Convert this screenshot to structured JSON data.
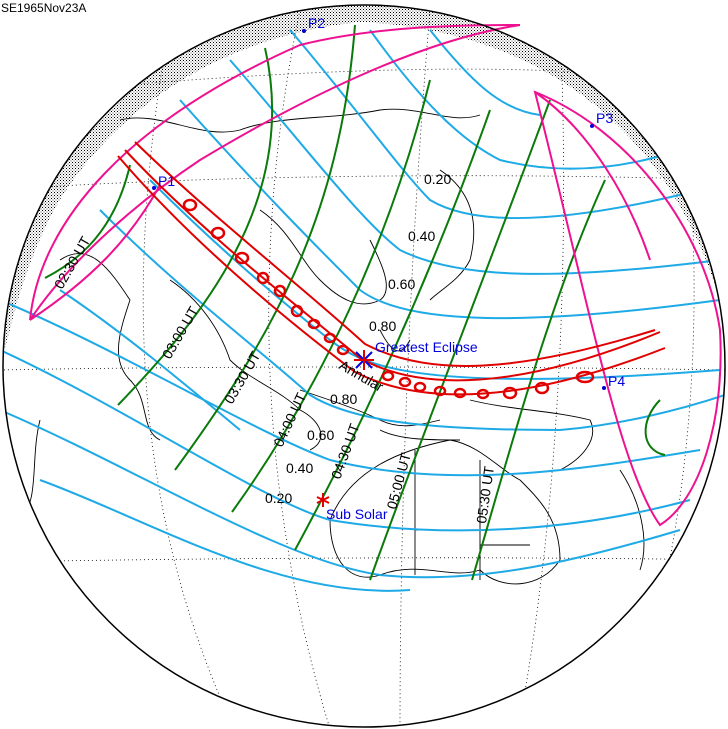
{
  "title": "SE1965Nov23A",
  "colors": {
    "magnitude_lines": "#1eaae6",
    "time_lines": "#0a7a0a",
    "limits": "#ee1190",
    "central_path": "#e00000",
    "labels_blue": "#0000dd"
  },
  "points": {
    "p1": "P1",
    "p2": "P2",
    "p3": "P3",
    "p4": "P4",
    "greatest_eclipse": "Greatest Eclipse",
    "sub_solar": "Sub Solar",
    "path_type": "Annular"
  },
  "time_labels": [
    "02:30 UT",
    "03:00 UT",
    "03:30 UT",
    "04:00 UT",
    "04:30 UT",
    "05:00 UT",
    "05:30 UT"
  ],
  "magnitude_labels_north": [
    "0.20",
    "0.40",
    "0.60",
    "0.80"
  ],
  "magnitude_labels_south": [
    "0.80",
    "0.60",
    "0.40",
    "0.20"
  ]
}
